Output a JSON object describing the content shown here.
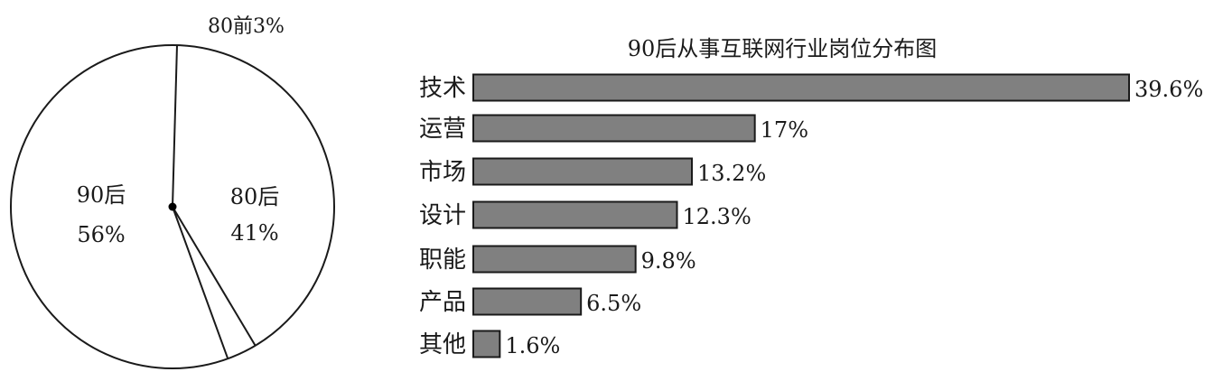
{
  "chart_data": [
    {
      "type": "pie",
      "categories": [
        "90后",
        "80后",
        "80前"
      ],
      "values": [
        56,
        41,
        3
      ],
      "labels": [
        {
          "name": "90后",
          "value": "56%"
        },
        {
          "name": "80后",
          "value": "41%"
        },
        {
          "name": "80前",
          "value": "3%",
          "text": "80前3%"
        }
      ]
    },
    {
      "type": "bar",
      "orientation": "horizontal",
      "title": "90后从事互联网行业岗位分布图",
      "categories": [
        "技术",
        "运营",
        "市场",
        "设计",
        "职能",
        "产品",
        "其他"
      ],
      "values": [
        39.6,
        17,
        13.2,
        12.3,
        9.8,
        6.5,
        1.6
      ],
      "value_labels": [
        "39.6%",
        "17%",
        "13.2%",
        "12.3%",
        "9.8%",
        "6.5%",
        "1.6%"
      ],
      "bar_color": "#808080"
    }
  ]
}
